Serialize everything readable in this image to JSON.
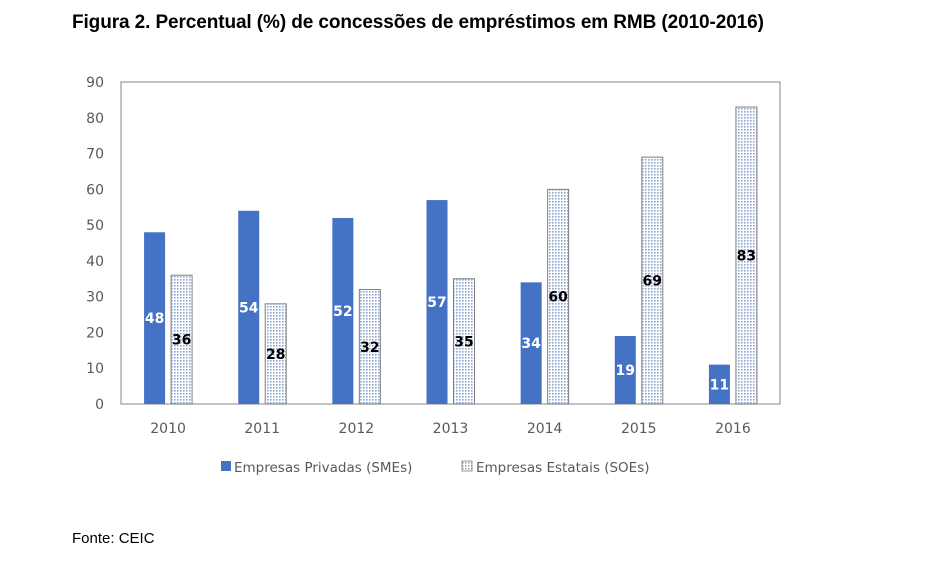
{
  "figure": {
    "title": "Figura 2. Percentual (%) de concessões de empréstimos em RMB (2010-2016)",
    "source": "Fonte: CEIC"
  },
  "chart_data": {
    "type": "bar",
    "title": "Figura 2. Percentual (%) de concessões de empréstimos em RMB (2010-2016)",
    "xlabel": "",
    "ylabel": "",
    "categories": [
      "2010",
      "2011",
      "2012",
      "2013",
      "2014",
      "2015",
      "2016"
    ],
    "series": [
      {
        "name": "Empresas Privadas (SMEs)",
        "values": [
          48,
          54,
          52,
          57,
          34,
          19,
          11
        ],
        "color": "#4472C4",
        "pattern": "solid"
      },
      {
        "name": "Empresas Estatais (SOEs)",
        "values": [
          36,
          28,
          32,
          35,
          60,
          69,
          83
        ],
        "color": "#DAE3F3",
        "pattern": "dotted"
      }
    ],
    "ylim": [
      0,
      90
    ],
    "yticks": [
      0,
      10,
      20,
      30,
      40,
      50,
      60,
      70,
      80,
      90
    ],
    "grid": false,
    "data_labels": true,
    "legend_position": "bottom"
  }
}
